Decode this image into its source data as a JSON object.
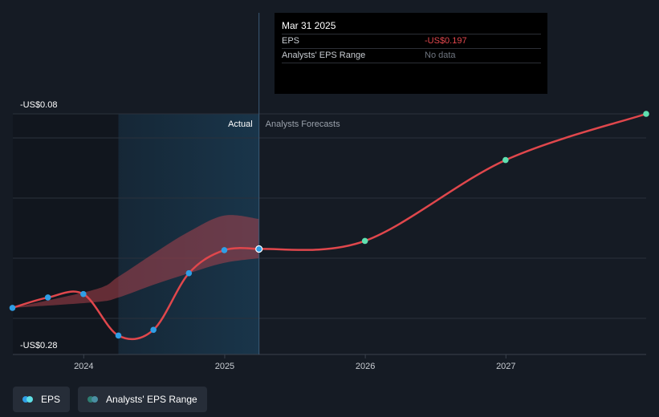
{
  "tooltip": {
    "date": "Mar 31 2025",
    "rows": [
      {
        "label": "EPS",
        "value": "-US$0.197"
      },
      {
        "label": "Analysts' EPS Range",
        "value": "No data"
      }
    ]
  },
  "legend": {
    "items": [
      {
        "label": "EPS",
        "colors": [
          "#2f9ee6",
          "#5fe0e6"
        ]
      },
      {
        "label": "Analysts' EPS Range",
        "colors": [
          "#2e7d72",
          "#4a8fa3"
        ]
      }
    ]
  },
  "chart_data": {
    "type": "line",
    "y_labels": [
      "-US$0.08",
      "-US$0.28"
    ],
    "ylim": [
      -0.28,
      -0.08
    ],
    "xlim": [
      "2023-07-01",
      "2027-12-31"
    ],
    "x_ticks": [
      "2024",
      "2025",
      "2026",
      "2027"
    ],
    "region_labels": {
      "actual": "Actual",
      "forecast": "Analysts Forecasts"
    },
    "divider_date": "2025-03-31",
    "highlight_start": "2024-03-31",
    "colors": {
      "eps_line": "#e0474c",
      "actual_point": "#2f9ee6",
      "forecast_point": "#5fe0b0",
      "range_fill": "#b8444e",
      "highlight": "#19354a"
    },
    "series": [
      {
        "name": "EPS",
        "points": [
          {
            "x": "2023-06-30",
            "y": -0.248
          },
          {
            "x": "2023-09-30",
            "y": -0.239
          },
          {
            "x": "2023-12-31",
            "y": -0.236
          },
          {
            "x": "2024-03-31",
            "y": -0.272
          },
          {
            "x": "2024-06-30",
            "y": -0.267
          },
          {
            "x": "2024-09-30",
            "y": -0.218
          },
          {
            "x": "2024-12-31",
            "y": -0.198
          },
          {
            "x": "2025-03-31",
            "y": -0.197
          }
        ]
      },
      {
        "name": "EPS forecast",
        "points": [
          {
            "x": "2025-03-31",
            "y": -0.197
          },
          {
            "x": "2025-12-31",
            "y": -0.19
          },
          {
            "x": "2026-12-31",
            "y": -0.12
          },
          {
            "x": "2027-12-31",
            "y": -0.08
          }
        ]
      }
    ],
    "eps_range": {
      "x": [
        "2023-06-30",
        "2024-01-31",
        "2024-03-31",
        "2024-06-30",
        "2024-09-30",
        "2024-12-31",
        "2025-03-31"
      ],
      "high": [
        -0.248,
        -0.232,
        -0.221,
        -0.201,
        -0.182,
        -0.168,
        -0.171
      ],
      "low": [
        -0.248,
        -0.243,
        -0.239,
        -0.228,
        -0.218,
        -0.209,
        -0.205
      ]
    }
  }
}
